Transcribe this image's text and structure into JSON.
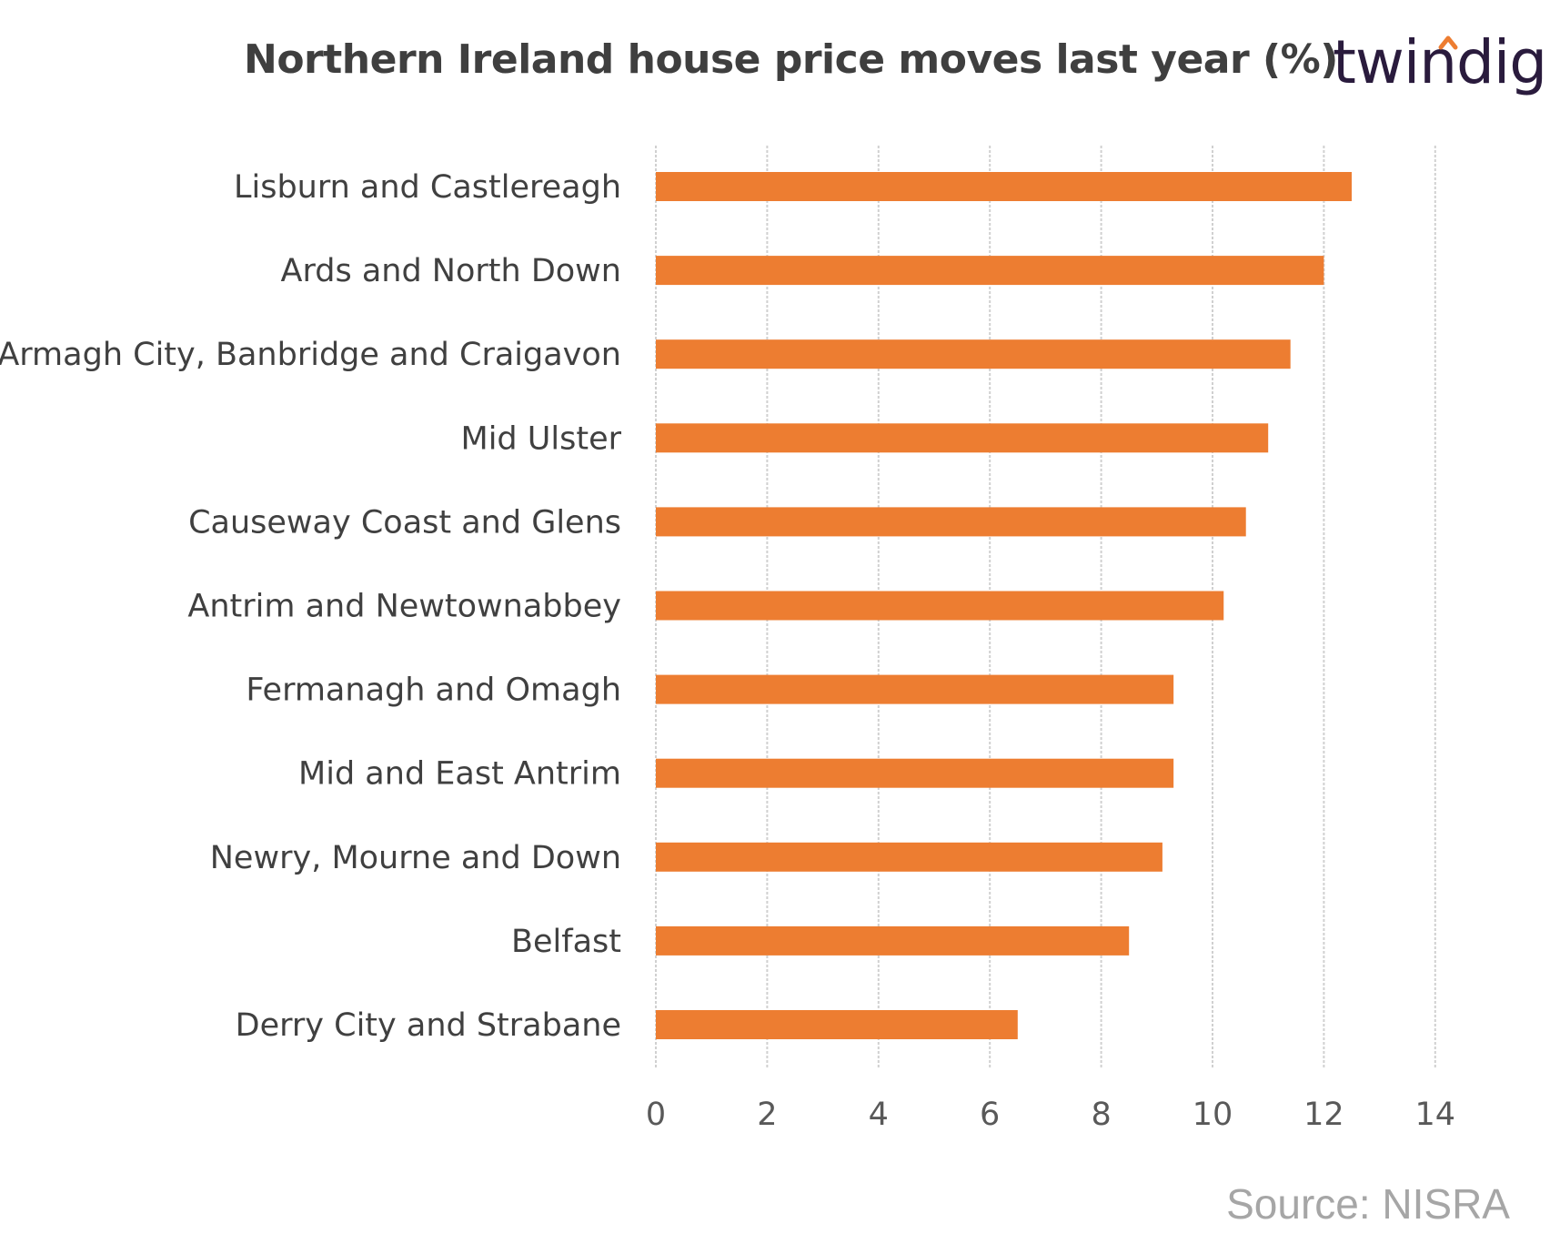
{
  "header": {
    "title": "Northern Ireland house price moves last year (%)",
    "logo_text": "twindig"
  },
  "footer": {
    "source": "Source: NISRA"
  },
  "colors": {
    "bar": "#ed7d31",
    "grid": "#d0d0d0",
    "logo_accent": "#ed7d31",
    "logo_text": "#2a1b3d"
  },
  "chart_data": {
    "type": "bar",
    "orientation": "horizontal",
    "title": "Northern Ireland house price moves last year (%)",
    "categories": [
      "Lisburn and Castlereagh",
      "Ards and North Down",
      "Armagh City, Banbridge and Craigavon",
      "Mid Ulster",
      "Causeway Coast and Glens",
      "Antrim and Newtownabbey",
      "Fermanagh and Omagh",
      "Mid and East Antrim",
      "Newry, Mourne and Down",
      "Belfast",
      "Derry City and Strabane"
    ],
    "values": [
      12.5,
      12.0,
      11.4,
      11.0,
      10.6,
      10.2,
      9.3,
      9.3,
      9.1,
      8.5,
      6.5
    ],
    "xlim": [
      0,
      14
    ],
    "xticks": [
      "0",
      "2",
      "4",
      "6",
      "8",
      "10",
      "12",
      "14"
    ],
    "grid": "vertical dashed",
    "legend": "none"
  }
}
